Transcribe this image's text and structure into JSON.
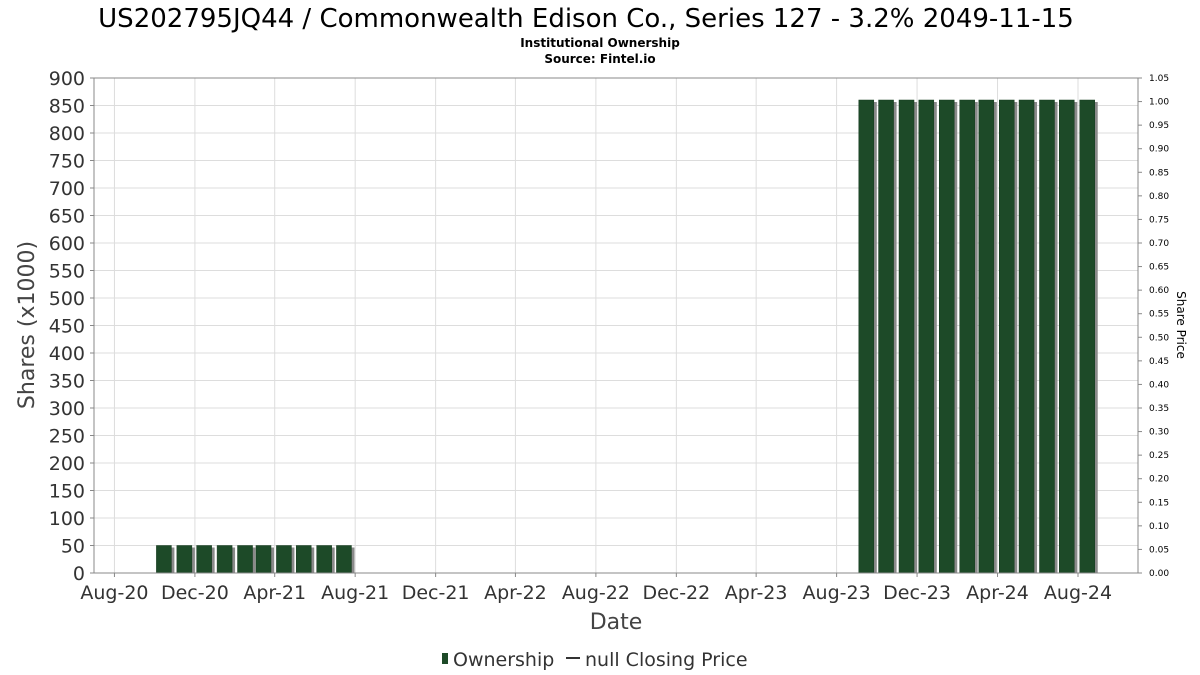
{
  "chart_data": {
    "type": "bar",
    "title": "US202795JQ44 / Commonwealth Edison Co., Series 127 - 3.2% 2049-11-15",
    "subtitle_lines": [
      "Institutional Ownership",
      "Source: Fintel.io"
    ],
    "xlabel": "Date",
    "ylabel": "Shares (x1000)",
    "ylabel_right": "Share Price",
    "ylim": [
      0,
      900
    ],
    "y_ticks": [
      0,
      50,
      100,
      150,
      200,
      250,
      300,
      350,
      400,
      450,
      500,
      550,
      600,
      650,
      700,
      750,
      800,
      850,
      900
    ],
    "y2lim": [
      0,
      1.05
    ],
    "y2_ticks": [
      "0.00",
      "0.05",
      "0.10",
      "0.15",
      "0.20",
      "0.25",
      "0.30",
      "0.35",
      "0.40",
      "0.45",
      "0.50",
      "0.55",
      "0.60",
      "0.65",
      "0.70",
      "0.75",
      "0.80",
      "0.85",
      "0.90",
      "0.95",
      "1.00",
      "1.05"
    ],
    "x_range": [
      "2020-07-01",
      "2024-10-31"
    ],
    "x_ticks": [
      {
        "date": "2020-08-01",
        "label": "Aug-20"
      },
      {
        "date": "2020-12-01",
        "label": "Dec-20"
      },
      {
        "date": "2021-04-01",
        "label": "Apr-21"
      },
      {
        "date": "2021-08-01",
        "label": "Aug-21"
      },
      {
        "date": "2021-12-01",
        "label": "Dec-21"
      },
      {
        "date": "2022-04-01",
        "label": "Apr-22"
      },
      {
        "date": "2022-08-01",
        "label": "Aug-22"
      },
      {
        "date": "2022-12-01",
        "label": "Dec-22"
      },
      {
        "date": "2023-04-01",
        "label": "Apr-23"
      },
      {
        "date": "2023-08-01",
        "label": "Aug-23"
      },
      {
        "date": "2023-12-01",
        "label": "Dec-23"
      },
      {
        "date": "2024-04-01",
        "label": "Apr-24"
      },
      {
        "date": "2024-08-01",
        "label": "Aug-24"
      }
    ],
    "grid": true,
    "legend_position": "bottom",
    "colors": {
      "bar": "#1d4a28",
      "bar_shadow": "#8a8a8a",
      "grid": "#dddddd",
      "frame": "#888888"
    },
    "series": [
      {
        "name": "Ownership",
        "points": [
          {
            "x": "2020-10-15",
            "y": 50
          },
          {
            "x": "2020-11-15",
            "y": 50
          },
          {
            "x": "2020-12-15",
            "y": 50
          },
          {
            "x": "2021-01-15",
            "y": 50
          },
          {
            "x": "2021-02-15",
            "y": 50
          },
          {
            "x": "2021-03-15",
            "y": 50
          },
          {
            "x": "2021-04-15",
            "y": 50
          },
          {
            "x": "2021-05-15",
            "y": 50
          },
          {
            "x": "2021-06-15",
            "y": 50
          },
          {
            "x": "2021-07-15",
            "y": 50
          },
          {
            "x": "2023-09-15",
            "y": 860
          },
          {
            "x": "2023-10-15",
            "y": 860
          },
          {
            "x": "2023-11-15",
            "y": 860
          },
          {
            "x": "2023-12-15",
            "y": 860
          },
          {
            "x": "2024-01-15",
            "y": 860
          },
          {
            "x": "2024-02-15",
            "y": 860
          },
          {
            "x": "2024-03-15",
            "y": 860
          },
          {
            "x": "2024-04-15",
            "y": 860
          },
          {
            "x": "2024-05-15",
            "y": 860
          },
          {
            "x": "2024-06-15",
            "y": 860
          },
          {
            "x": "2024-07-15",
            "y": 860
          },
          {
            "x": "2024-08-15",
            "y": 860
          }
        ]
      }
    ],
    "legend": {
      "ownership_label": "Ownership",
      "price_label": "null Closing Price"
    }
  }
}
